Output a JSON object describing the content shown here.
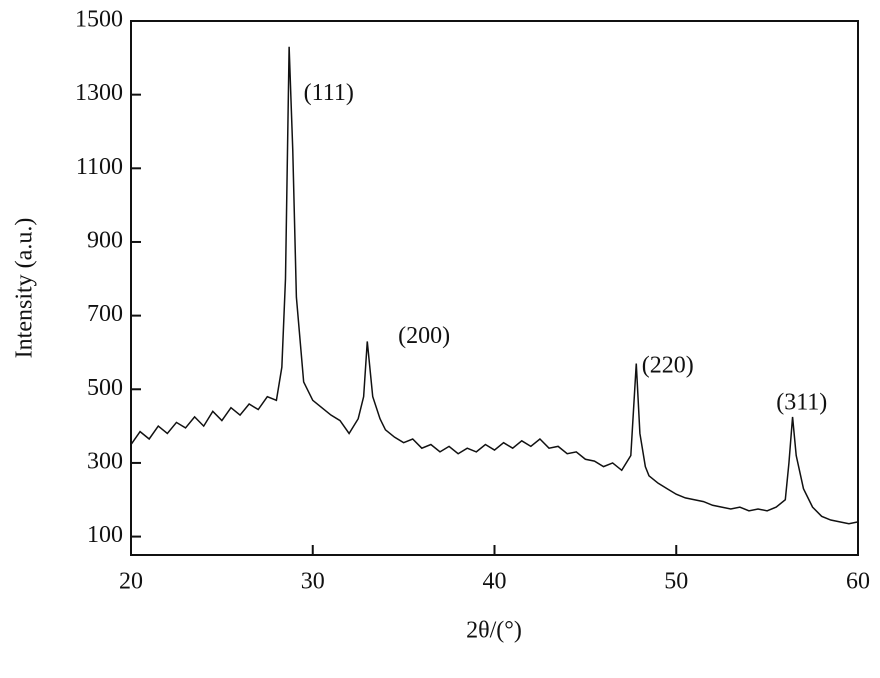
{
  "chart_data": {
    "type": "line",
    "x_label": "2θ/(°)",
    "y_label": "Intensity (a.u.)",
    "xlim": [
      20,
      60
    ],
    "ylim": [
      50,
      1500
    ],
    "xticks": [
      20,
      30,
      40,
      50,
      60
    ],
    "yticks": [
      100,
      300,
      500,
      700,
      900,
      1100,
      1300,
      1500
    ],
    "series": [
      {
        "color": "#111111",
        "x": [
          20,
          20.5,
          21,
          21.5,
          22,
          22.5,
          23,
          23.5,
          24,
          24.5,
          25,
          25.5,
          26,
          26.5,
          27,
          27.5,
          28,
          28.3,
          28.5,
          28.7,
          28.9,
          29.1,
          29.5,
          30,
          30.5,
          31,
          31.5,
          32,
          32.5,
          32.8,
          33,
          33.3,
          33.7,
          34,
          34.5,
          35,
          35.5,
          36,
          36.5,
          37,
          37.5,
          38,
          38.5,
          39,
          39.5,
          40,
          40.5,
          41,
          41.5,
          42,
          42.5,
          43,
          43.5,
          44,
          44.5,
          45,
          45.5,
          46,
          46.5,
          47,
          47.5,
          47.8,
          48,
          48.3,
          48.5,
          49,
          49.5,
          50,
          50.5,
          51,
          51.5,
          52,
          52.5,
          53,
          53.5,
          54,
          54.5,
          55,
          55.5,
          56,
          56.2,
          56.4,
          56.6,
          57,
          57.5,
          58,
          58.5,
          59,
          59.5,
          60
        ],
        "values": [
          350,
          385,
          365,
          400,
          380,
          410,
          395,
          425,
          400,
          440,
          415,
          450,
          430,
          460,
          445,
          480,
          470,
          560,
          800,
          1430,
          1150,
          750,
          520,
          470,
          450,
          430,
          415,
          380,
          420,
          480,
          630,
          480,
          420,
          390,
          370,
          355,
          365,
          340,
          350,
          330,
          345,
          325,
          340,
          330,
          350,
          335,
          355,
          340,
          360,
          345,
          365,
          340,
          345,
          325,
          330,
          310,
          305,
          290,
          300,
          280,
          320,
          570,
          380,
          290,
          265,
          245,
          230,
          215,
          205,
          200,
          195,
          185,
          180,
          175,
          180,
          170,
          175,
          170,
          180,
          200,
          300,
          425,
          320,
          230,
          180,
          155,
          145,
          140,
          135,
          140
        ]
      }
    ],
    "annotations": [
      {
        "text": "(111)",
        "x": 29.5,
        "y": 1300
      },
      {
        "text": "(200)",
        "x": 34.7,
        "y": 640
      },
      {
        "text": "(220)",
        "x": 48.1,
        "y": 560
      },
      {
        "text": "(311)",
        "x": 55.5,
        "y": 460
      }
    ]
  }
}
